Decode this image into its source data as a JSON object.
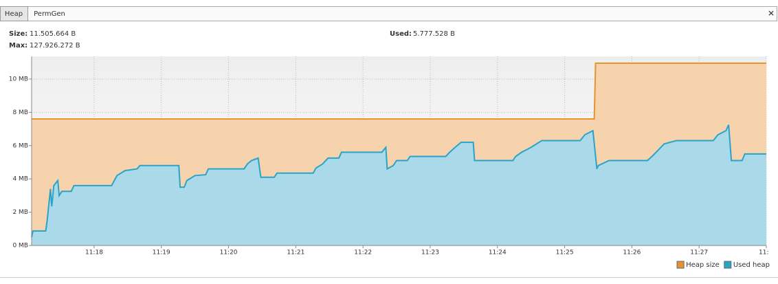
{
  "tabs": [
    "Heap",
    "PermGen"
  ],
  "close": "✕",
  "info": {
    "size_label": "Size:",
    "size": "11.505.664 B",
    "max_label": "Max:",
    "max": "127.926.272 B",
    "used_label": "Used:",
    "used": "5.777.528 B"
  },
  "chart_data": {
    "type": "line",
    "area": true,
    "grid": true,
    "legend": "bottom-right",
    "xlim": [
      17.07,
      28
    ],
    "ylim": [
      0,
      11.36
    ],
    "xticks": [
      {
        "value": 18,
        "label": "11:18"
      },
      {
        "value": 19,
        "label": "11:19"
      },
      {
        "value": 20,
        "label": "11:20"
      },
      {
        "value": 21,
        "label": "11:21"
      },
      {
        "value": 22,
        "label": "11:22"
      },
      {
        "value": 23,
        "label": "11:23"
      },
      {
        "value": 24,
        "label": "11:24"
      },
      {
        "value": 25,
        "label": "11:25"
      },
      {
        "value": 26,
        "label": "11:26"
      },
      {
        "value": 27,
        "label": "11:27"
      },
      {
        "value": 28,
        "label": "11:"
      }
    ],
    "yticks": [
      {
        "value": 0,
        "label": "0 MB"
      },
      {
        "value": 2,
        "label": "2 MB"
      },
      {
        "value": 4,
        "label": "4 MB"
      },
      {
        "value": 6,
        "label": "6 MB"
      },
      {
        "value": 8,
        "label": "8 MB"
      },
      {
        "value": 10,
        "label": "10 MB"
      }
    ],
    "series": [
      {
        "name": "Heap size",
        "color": "#e8922f",
        "x": [
          17.07,
          25.44,
          25.46,
          28
        ],
        "values": [
          7.6,
          7.6,
          10.95,
          10.95
        ]
      },
      {
        "name": "Used heap",
        "color": "#2aa3c8",
        "x": [
          17.07,
          17.09,
          17.28,
          17.3,
          17.33,
          17.35,
          17.37,
          17.4,
          17.46,
          17.48,
          17.52,
          17.66,
          17.7,
          18.26,
          18.3,
          18.34,
          18.46,
          18.64,
          18.68,
          19.26,
          19.28,
          19.34,
          19.38,
          19.5,
          19.66,
          19.7,
          20.23,
          20.28,
          20.34,
          20.44,
          20.48,
          20.68,
          20.72,
          21.26,
          21.3,
          21.4,
          21.48,
          21.64,
          21.68,
          22.28,
          22.34,
          22.36,
          22.45,
          22.5,
          22.66,
          22.7,
          23.23,
          23.29,
          23.37,
          23.46,
          23.64,
          23.66,
          24.23,
          24.27,
          24.36,
          24.5,
          24.66,
          25.23,
          25.3,
          25.42,
          25.46,
          25.48,
          25.5,
          25.66,
          26.23,
          26.3,
          26.36,
          26.48,
          26.66,
          27.21,
          27.28,
          27.4,
          27.44,
          27.48,
          27.64,
          27.68,
          28
        ],
        "values": [
          0.5,
          0.87,
          0.87,
          1.45,
          2.6,
          3.4,
          2.35,
          3.6,
          3.9,
          3.0,
          3.25,
          3.25,
          3.6,
          3.6,
          3.9,
          4.2,
          4.5,
          4.6,
          4.8,
          4.8,
          3.5,
          3.5,
          3.9,
          4.2,
          4.25,
          4.6,
          4.6,
          4.9,
          5.1,
          5.25,
          4.1,
          4.1,
          4.35,
          4.35,
          4.65,
          4.9,
          5.25,
          5.25,
          5.6,
          5.6,
          5.9,
          4.6,
          4.8,
          5.1,
          5.1,
          5.35,
          5.35,
          5.6,
          5.9,
          6.2,
          6.2,
          5.1,
          5.1,
          5.35,
          5.6,
          5.9,
          6.3,
          6.3,
          6.65,
          6.9,
          5.35,
          4.6,
          4.8,
          5.1,
          5.1,
          5.35,
          5.6,
          6.1,
          6.3,
          6.3,
          6.65,
          6.9,
          7.25,
          5.1,
          5.1,
          5.5,
          5.5
        ]
      }
    ]
  }
}
